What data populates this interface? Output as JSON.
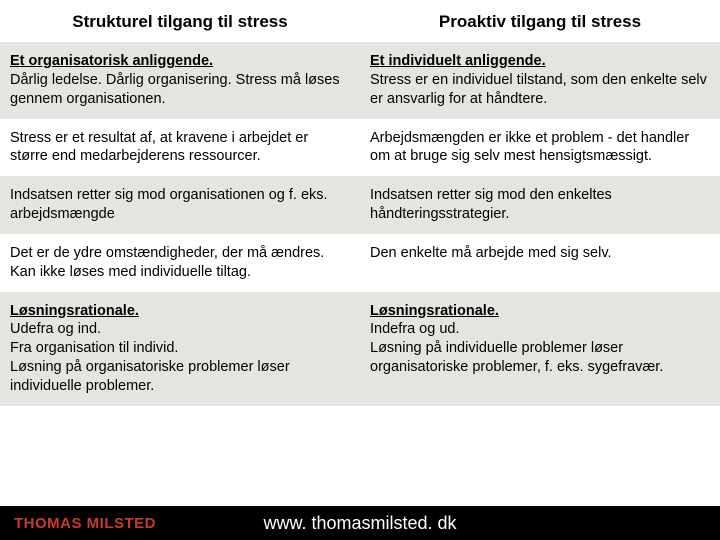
{
  "table": {
    "header": {
      "left": "Strukturel tilgang til stress",
      "right": "Proaktiv tilgang til stress"
    },
    "rows": [
      {
        "left_title": "Et organisatorisk anliggende.",
        "left_body": "Dårlig ledelse. Dårlig organisering. Stress må løses gennem organisationen.",
        "right_title": "Et individuelt anliggende.",
        "right_body": "Stress er en individuel tilstand, som den enkelte selv er ansvarlig for at håndtere.",
        "bg": "grey"
      },
      {
        "left_body": "Stress er et resultat af, at kravene i arbejdet er større end medarbejderens ressourcer.",
        "right_body": "Arbejdsmængden er ikke et problem - det handler om at bruge sig selv mest hensigtsmæssigt.",
        "bg": "white"
      },
      {
        "left_body": "Indsatsen retter sig mod organisationen og f. eks. arbejdsmængde",
        "right_body": "Indsatsen retter sig mod den enkeltes håndteringsstrategier.",
        "bg": "grey"
      },
      {
        "left_body": "Det er de ydre omstændigheder, der må ændres. Kan ikke løses med individuelle tiltag.",
        "right_body": "Den enkelte må arbejde med sig selv.",
        "bg": "white"
      },
      {
        "left_title": "Løsningsrationale.",
        "left_body": "Udefra og ind.\nFra organisation til individ.\nLøsning på organisatoriske problemer løser individuelle problemer.",
        "right_title": "Løsningsrationale.",
        "right_body": "Indefra og ud.\nLøsning på  individuelle problemer løser organisatoriske problemer, f. eks. sygefravær.",
        "bg": "grey"
      }
    ]
  },
  "footer": {
    "author": "THOMAS MILSTED",
    "url": "www. thomasmilsted. dk"
  },
  "colors": {
    "row_grey": "#e4e4e0",
    "row_white": "#ffffff",
    "footer_bg": "#000000",
    "author_color": "#c73a2e",
    "url_color": "#ffffff",
    "text_color": "#000000"
  },
  "typography": {
    "header_fontsize": 17,
    "body_fontsize": 14.5,
    "footer_author_fontsize": 15,
    "footer_url_fontsize": 18,
    "font_family": "Arial"
  }
}
